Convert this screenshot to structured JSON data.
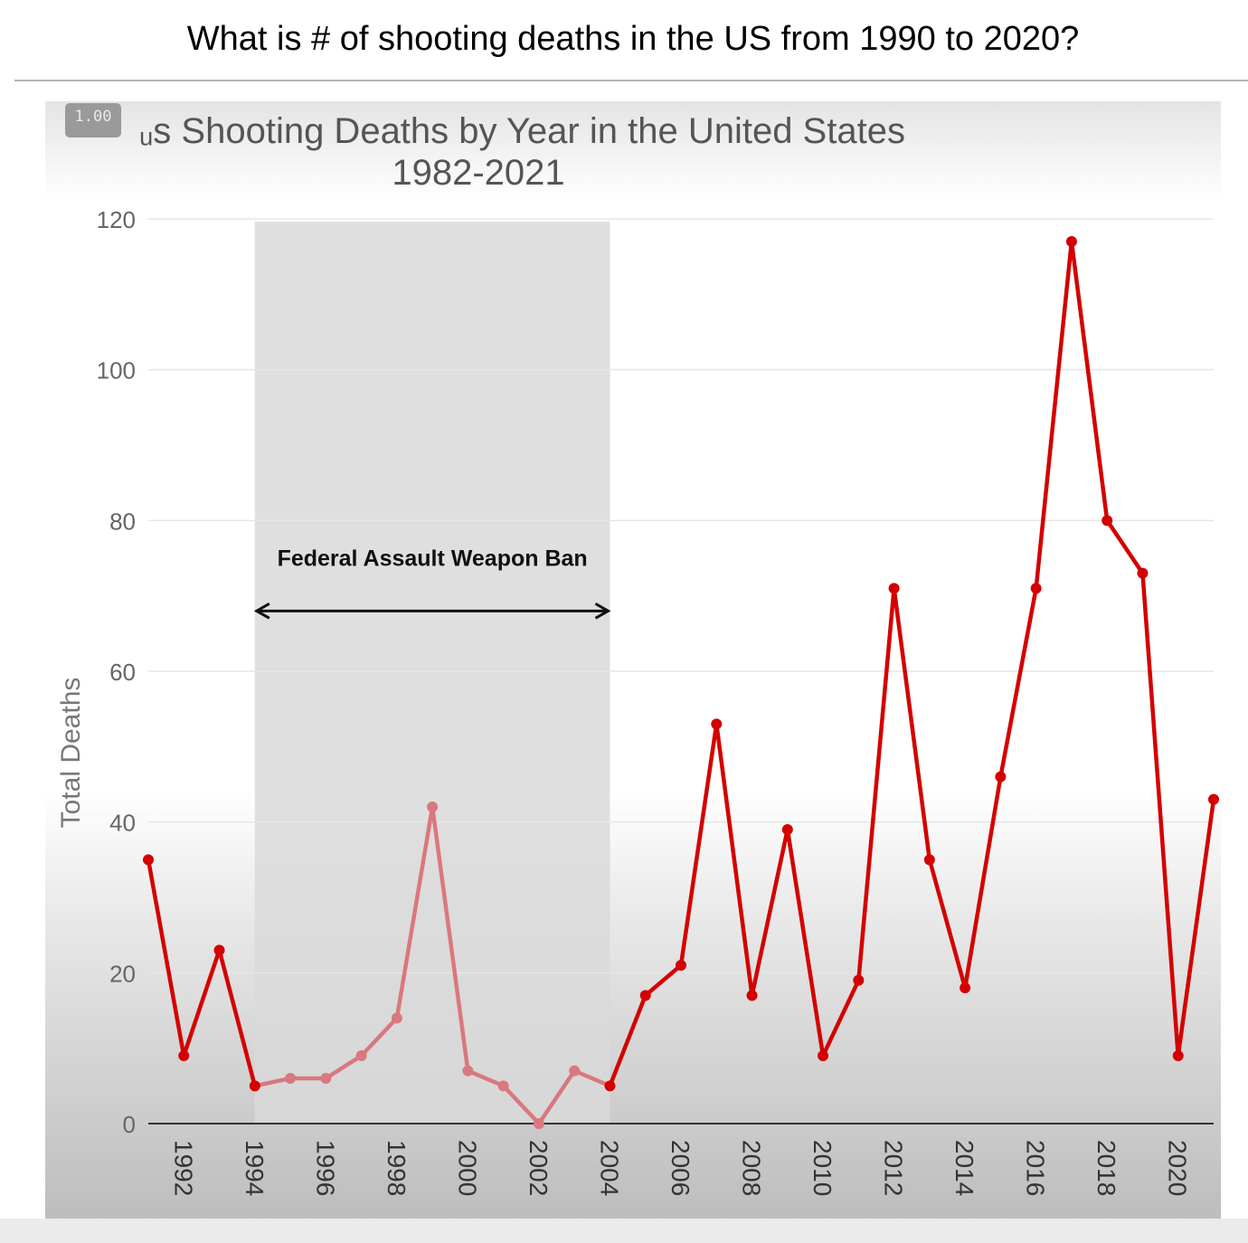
{
  "question": "What is # of shooting deaths in the US from 1990 to 2020?",
  "player": {
    "speed_label": "1.00"
  },
  "chart_data": {
    "type": "line",
    "title_line1": "ᵤs Shooting Deaths by Year in the United States",
    "title_line2": "1982-2021",
    "ylabel": "Total Deaths",
    "xlabel": "",
    "ylim": [
      0,
      120
    ],
    "xlim": [
      1991.0,
      2021.0
    ],
    "yticks": [
      0,
      20,
      40,
      60,
      80,
      100,
      120
    ],
    "xticks": [
      1992,
      1994,
      1996,
      1998,
      2000,
      2002,
      2004,
      2006,
      2008,
      2010,
      2012,
      2014,
      2016,
      2018,
      2020
    ],
    "grid": true,
    "line_color": "#d40000",
    "faded_color": "#d9787e",
    "series": [
      {
        "x": [
          1991,
          1992,
          1993,
          1994,
          1995,
          1996,
          1997,
          1998,
          1999,
          2000,
          2001,
          2002,
          2003,
          2004,
          2005,
          2006,
          2007,
          2008,
          2009,
          2010,
          2011,
          2012,
          2013,
          2014,
          2015,
          2016,
          2017,
          2018,
          2019,
          2020,
          2021
        ],
        "values": [
          35,
          9,
          23,
          5,
          6,
          6,
          9,
          14,
          42,
          7,
          5,
          0,
          7,
          5,
          17,
          21,
          53,
          17,
          39,
          9,
          19,
          71,
          35,
          18,
          46,
          71,
          117,
          80,
          73,
          9,
          43
        ]
      }
    ],
    "annotation": {
      "label": "Federal Assault Weapon Ban",
      "from": 1994,
      "to": 2004,
      "shade_color": "#d9d9d9"
    }
  }
}
